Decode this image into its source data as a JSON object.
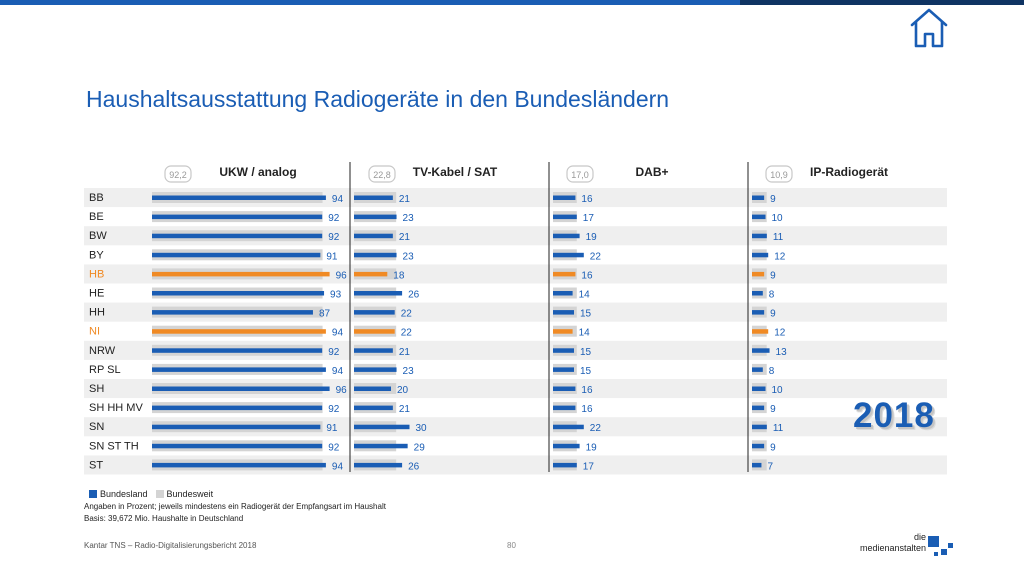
{
  "header": {
    "title": "Haushaltsausstattung Radiogeräte in den Bundesländern",
    "home_icon": "home-icon"
  },
  "colors": {
    "accent": "#1a5db4",
    "highlight": "#f08a24",
    "national": "#d4d4d4",
    "stripe": "#efefef"
  },
  "chart_data": {
    "type": "bar",
    "orientation": "horizontal",
    "categories": [
      "BB",
      "BE",
      "BW",
      "BY",
      "HB",
      "HE",
      "HH",
      "NI",
      "NRW",
      "RP SL",
      "SH",
      "SH HH MV",
      "SN",
      "SN ST TH",
      "ST"
    ],
    "highlighted_categories": [
      "HB",
      "NI"
    ],
    "panels": [
      {
        "name": "UKW / analog",
        "national_value": 92.2,
        "national_label": "92,2",
        "max": 100,
        "values": [
          94,
          92,
          92,
          91,
          96,
          93,
          87,
          94,
          92,
          94,
          96,
          92,
          91,
          92,
          94
        ]
      },
      {
        "name": "TV-Kabel / SAT",
        "national_value": 22.8,
        "national_label": "22,8",
        "max": 100,
        "values": [
          21,
          23,
          21,
          23,
          18,
          26,
          22,
          22,
          21,
          23,
          20,
          21,
          30,
          29,
          26
        ]
      },
      {
        "name": "DAB+",
        "national_value": 17.0,
        "national_label": "17,0",
        "max": 100,
        "values": [
          16,
          17,
          19,
          22,
          16,
          14,
          15,
          14,
          15,
          15,
          16,
          16,
          22,
          19,
          17
        ]
      },
      {
        "name": "IP-Radiogerät",
        "national_value": 10.9,
        "national_label": "10,9",
        "max": 100,
        "values": [
          9,
          10,
          11,
          12,
          9,
          8,
          9,
          12,
          13,
          8,
          10,
          9,
          11,
          9,
          7
        ]
      }
    ],
    "legend": [
      {
        "label": "Bundesland",
        "color": "#1a5db4"
      },
      {
        "label": "Bundesweit",
        "color": "#d4d4d4"
      }
    ],
    "legend_position": "bottom-left"
  },
  "notes": {
    "line1": "Angaben in Prozent; jeweils mindestens ein Radiogerät der Empfangsart im Haushalt",
    "line2": "Basis: 39,672 Mio. Haushalte in Deutschland"
  },
  "footer": {
    "source": "Kantar TNS – Radio-Digitalisierungsbericht 2018",
    "page_number": "80",
    "logo_line1": "die",
    "logo_line2": "medienanstalten"
  },
  "badge": {
    "year": "2018"
  }
}
